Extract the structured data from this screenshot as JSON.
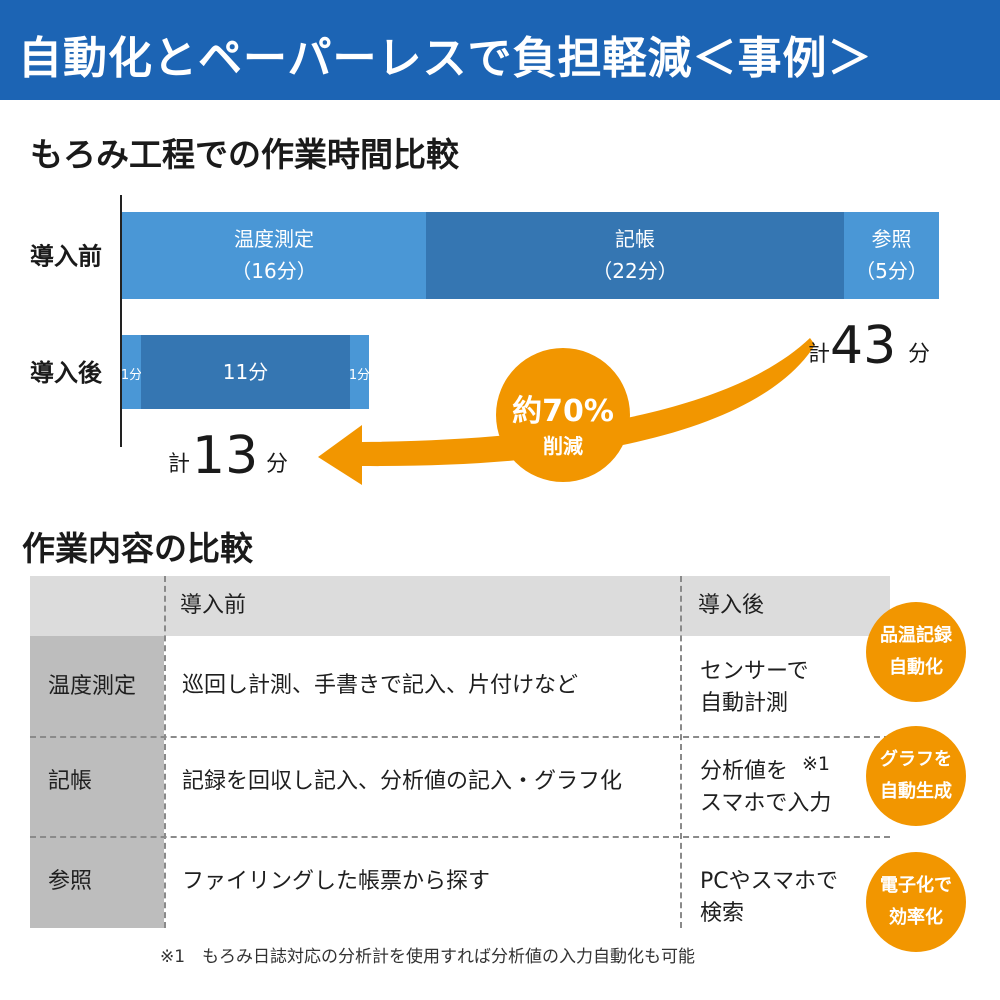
{
  "header": {
    "title": "自動化とペーパーレスで負担軽減＜事例＞"
  },
  "chart_section": {
    "title": "もろみ工程での作業時間比較"
  },
  "chart_data": {
    "type": "bar",
    "orientation": "horizontal",
    "stacked": true,
    "unit": "分",
    "categories": [
      "導入前",
      "導入後"
    ],
    "series": [
      {
        "name": "温度測定",
        "values": [
          16,
          1
        ]
      },
      {
        "name": "記帳",
        "values": [
          22,
          11
        ]
      },
      {
        "name": "参照",
        "values": [
          5,
          1
        ]
      }
    ],
    "segment_labels": {
      "before": [
        {
          "name": "温度測定",
          "value": "（16分）"
        },
        {
          "name": "記帳",
          "value": "（22分）"
        },
        {
          "name": "参照",
          "value": "（5分）"
        }
      ],
      "after": [
        "1分",
        "11分",
        "1分"
      ]
    },
    "totals": [
      {
        "prefix": "計",
        "value": "43",
        "unit": "分"
      },
      {
        "prefix": "計",
        "value": "13",
        "unit": "分"
      }
    ],
    "reduction": {
      "line1": "約70%",
      "line2": "削減"
    },
    "colors": {
      "light": "#4a97d6",
      "dark": "#3576b2",
      "arrow": "#f29600"
    }
  },
  "table_section": {
    "title": "作業内容の比較"
  },
  "table": {
    "headers": [
      "",
      "導入前",
      "導入後"
    ],
    "rows": [
      {
        "label": "温度測定",
        "before": "巡回し計測、手書きで記入、片付けなど",
        "after": "センサーで\n自動計測",
        "badge": "品温記録\n自動化"
      },
      {
        "label": "記帳",
        "before": "記録を回収し記入、分析値の記入・グラフ化",
        "after": "分析値を\nスマホで入力",
        "note": "※1",
        "badge": "グラフを\n自動生成"
      },
      {
        "label": "参照",
        "before": "ファイリングした帳票から探す",
        "after": "PCやスマホで\n検索",
        "badge": "電子化で\n効率化"
      }
    ]
  },
  "footnote": "※1　もろみ日誌対応の分析計を使用すれば分析値の入力自動化も可能"
}
